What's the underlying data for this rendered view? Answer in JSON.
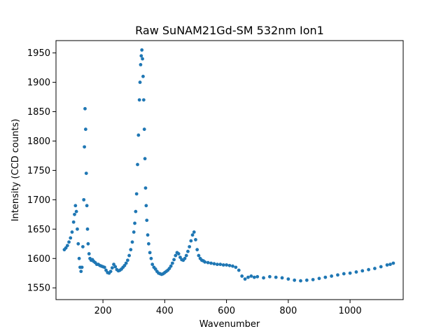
{
  "chart_data": {
    "type": "scatter",
    "title": "Raw SuNAM21Gd-SM 532nm Ion1",
    "xlabel": "Wavenumber",
    "ylabel": "Intensity (CCD counts)",
    "xlim": [
      48,
      1172
    ],
    "ylim": [
      1530,
      1971
    ],
    "xticks": [
      200,
      400,
      600,
      800,
      1000
    ],
    "yticks": [
      1550,
      1600,
      1650,
      1700,
      1750,
      1800,
      1850,
      1900,
      1950
    ],
    "grid": false,
    "marker_color": "#1f77b4",
    "series": [
      {
        "x": [
          75,
          80,
          85,
          90,
          95,
          100,
          105,
          108,
          111,
          114,
          117,
          120,
          123,
          126,
          129,
          132,
          135,
          138,
          140,
          142,
          144,
          146,
          148,
          150,
          152,
          155,
          158,
          162,
          166,
          170,
          175,
          180,
          185,
          190,
          195,
          200,
          205,
          210,
          215,
          220,
          225,
          230,
          235,
          240,
          245,
          250,
          255,
          260,
          265,
          270,
          275,
          280,
          285,
          290,
          295,
          300,
          303,
          306,
          309,
          312,
          315,
          318,
          320,
          322,
          324,
          326,
          328,
          330,
          332,
          334,
          336,
          338,
          340,
          342,
          345,
          348,
          352,
          356,
          360,
          365,
          370,
          375,
          380,
          385,
          390,
          395,
          400,
          405,
          410,
          415,
          420,
          425,
          430,
          435,
          440,
          445,
          450,
          455,
          460,
          465,
          470,
          475,
          480,
          485,
          490,
          495,
          500,
          505,
          510,
          515,
          520,
          525,
          530,
          540,
          550,
          560,
          570,
          580,
          590,
          600,
          610,
          620,
          630,
          640,
          650,
          660,
          670,
          680,
          690,
          700,
          720,
          740,
          760,
          780,
          800,
          820,
          840,
          860,
          880,
          900,
          920,
          940,
          960,
          980,
          1000,
          1020,
          1040,
          1060,
          1080,
          1100,
          1120,
          1130,
          1140
        ],
        "y": [
          1615,
          1618,
          1622,
          1628,
          1635,
          1645,
          1662,
          1675,
          1690,
          1680,
          1650,
          1625,
          1600,
          1585,
          1578,
          1585,
          1620,
          1700,
          1790,
          1855,
          1820,
          1745,
          1690,
          1650,
          1625,
          1608,
          1600,
          1597,
          1598,
          1595,
          1593,
          1590,
          1590,
          1588,
          1587,
          1586,
          1585,
          1580,
          1576,
          1575,
          1578,
          1584,
          1590,
          1586,
          1581,
          1579,
          1580,
          1582,
          1585,
          1588,
          1592,
          1597,
          1605,
          1615,
          1628,
          1645,
          1660,
          1680,
          1710,
          1760,
          1810,
          1870,
          1900,
          1930,
          1945,
          1955,
          1940,
          1910,
          1870,
          1820,
          1770,
          1720,
          1690,
          1665,
          1640,
          1625,
          1610,
          1600,
          1590,
          1585,
          1582,
          1578,
          1575,
          1574,
          1573,
          1574,
          1576,
          1578,
          1580,
          1583,
          1587,
          1592,
          1598,
          1605,
          1610,
          1608,
          1602,
          1598,
          1597,
          1600,
          1605,
          1612,
          1620,
          1630,
          1640,
          1645,
          1632,
          1615,
          1605,
          1600,
          1597,
          1596,
          1594,
          1593,
          1592,
          1591,
          1590,
          1590,
          1589,
          1589,
          1588,
          1587,
          1585,
          1580,
          1570,
          1565,
          1568,
          1570,
          1568,
          1569,
          1567,
          1569,
          1568,
          1567,
          1565,
          1563,
          1562,
          1563,
          1564,
          1566,
          1568,
          1570,
          1572,
          1574,
          1575,
          1577,
          1579,
          1581,
          1583,
          1586,
          1589,
          1590,
          1592
        ]
      }
    ]
  }
}
